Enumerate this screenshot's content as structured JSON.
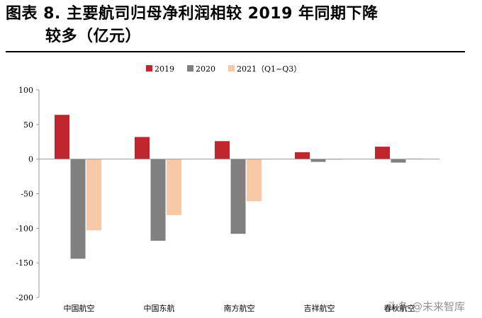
{
  "header": {
    "title_line1": "图表 8.   主要航司归母净利润相较 2019 年同期下降",
    "title_line2": "较多（亿元）"
  },
  "watermark": "头条 @未来智库",
  "colors": {
    "series_2019": "#c0262d",
    "series_2020": "#808080",
    "series_2021": "#f8c9a6",
    "axis": "#999999"
  },
  "chart_data": {
    "type": "bar",
    "categories": [
      "中国航空",
      "中国东航",
      "南方航空",
      "吉祥航空",
      "春秋航空"
    ],
    "series": [
      {
        "name": "2019",
        "values": [
          64,
          32,
          26,
          10,
          18
        ]
      },
      {
        "name": "2020",
        "values": [
          -144,
          -118,
          -108,
          -4,
          -5
        ]
      },
      {
        "name": "2021（Q1~Q3）",
        "values": [
          -103,
          -81,
          -61,
          -1,
          1
        ]
      }
    ],
    "ylim": [
      -200,
      100
    ],
    "yticks": [
      100,
      50,
      0,
      -50,
      -100,
      -150,
      -200
    ],
    "legend": "top",
    "grid": false
  }
}
